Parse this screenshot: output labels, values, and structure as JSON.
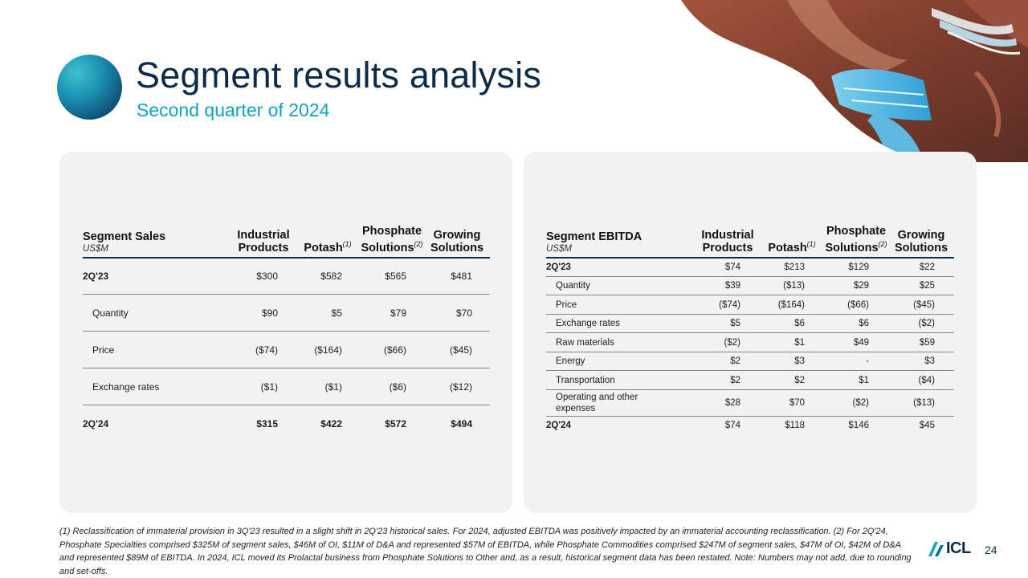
{
  "header": {
    "title": "Segment results analysis",
    "subtitle": "Second quarter of 2024"
  },
  "sales": {
    "title": "Segment Sales",
    "unit": "US$M",
    "columns": [
      {
        "line1": "Industrial",
        "line2": "Products",
        "sup": ""
      },
      {
        "line1": "",
        "line2": "Potash",
        "sup": "(1)"
      },
      {
        "line1": "Phosphate",
        "line2": "Solutions",
        "sup": "(2)"
      },
      {
        "line1": "Growing",
        "line2": "Solutions",
        "sup": ""
      }
    ],
    "rows": [
      {
        "label": "2Q'23",
        "values": [
          "$300",
          "$582",
          "$565",
          "$481"
        ]
      },
      {
        "label": "Quantity",
        "values": [
          "$90",
          "$5",
          "$79",
          "$70"
        ]
      },
      {
        "label": "Price",
        "values": [
          "($74)",
          "($164)",
          "($66)",
          "($45)"
        ]
      },
      {
        "label": "Exchange rates",
        "values": [
          "($1)",
          "($1)",
          "($6)",
          "($12)"
        ]
      },
      {
        "label": "2Q'24",
        "values": [
          "$315",
          "$422",
          "$572",
          "$494"
        ]
      }
    ]
  },
  "ebitda": {
    "title": "Segment EBITDA",
    "unit": "US$M",
    "columns": [
      {
        "line1": "Industrial",
        "line2": "Products",
        "sup": ""
      },
      {
        "line1": "",
        "line2": "Potash",
        "sup": "(1)"
      },
      {
        "line1": "Phosphate",
        "line2": "Solutions",
        "sup": "(2)"
      },
      {
        "line1": "Growing",
        "line2": "Solutions",
        "sup": ""
      }
    ],
    "rows": [
      {
        "label": "2Q'23",
        "values": [
          "$74",
          "$213",
          "$129",
          "$22"
        ]
      },
      {
        "label": "Quantity",
        "values": [
          "$39",
          "($13)",
          "$29",
          "$25"
        ]
      },
      {
        "label": "Price",
        "values": [
          "($74)",
          "($164)",
          "($66)",
          "($45)"
        ]
      },
      {
        "label": "Exchange rates",
        "values": [
          "$5",
          "$6",
          "$6",
          "($2)"
        ]
      },
      {
        "label": "Raw materials",
        "values": [
          "($2)",
          "$1",
          "$49",
          "$59"
        ]
      },
      {
        "label": "Energy",
        "values": [
          "$2",
          "$3",
          "-",
          "$3"
        ]
      },
      {
        "label": "Transportation",
        "values": [
          "$2",
          "$2",
          "$1",
          "($4)"
        ]
      },
      {
        "label": "Operating and other expenses",
        "values": [
          "$28",
          "$70",
          "($2)",
          "($13)"
        ]
      },
      {
        "label": "2Q'24",
        "values": [
          "$74",
          "$118",
          "$146",
          "$45"
        ]
      }
    ]
  },
  "footnote": "(1) Reclassification of immaterial provision in 3Q'23 resulted in a slight shift in 2Q'23 historical sales. For 2024, adjusted EBITDA was positively impacted by an immaterial accounting reclassification. (2) For 2Q'24, Phosphate Specialties comprised $325M of segment sales, $46M of OI, $11M of D&A and represented $57M of EBITDA, while Phosphate Commodities comprised $247M of segment sales, $47M of OI, $42M of D&A and represented $89M of EBITDA. In 2024, ICL moved its Prolactal business from Phosphate Solutions to Other and, as a result, historical segment data has been restated. Note: Numbers may not add, due to rounding and set-offs.",
  "logo": {
    "text": "ICL"
  },
  "page_number": "24",
  "colors": {
    "navy": "#0c2b4b",
    "teal": "#11a3c0",
    "panel": "#f2f2f2"
  },
  "icons": {
    "brand_sphere": "sphere-icon",
    "logo_mark": "icl-logo-icon",
    "header_photo": "aerial-salt-ponds-image"
  }
}
